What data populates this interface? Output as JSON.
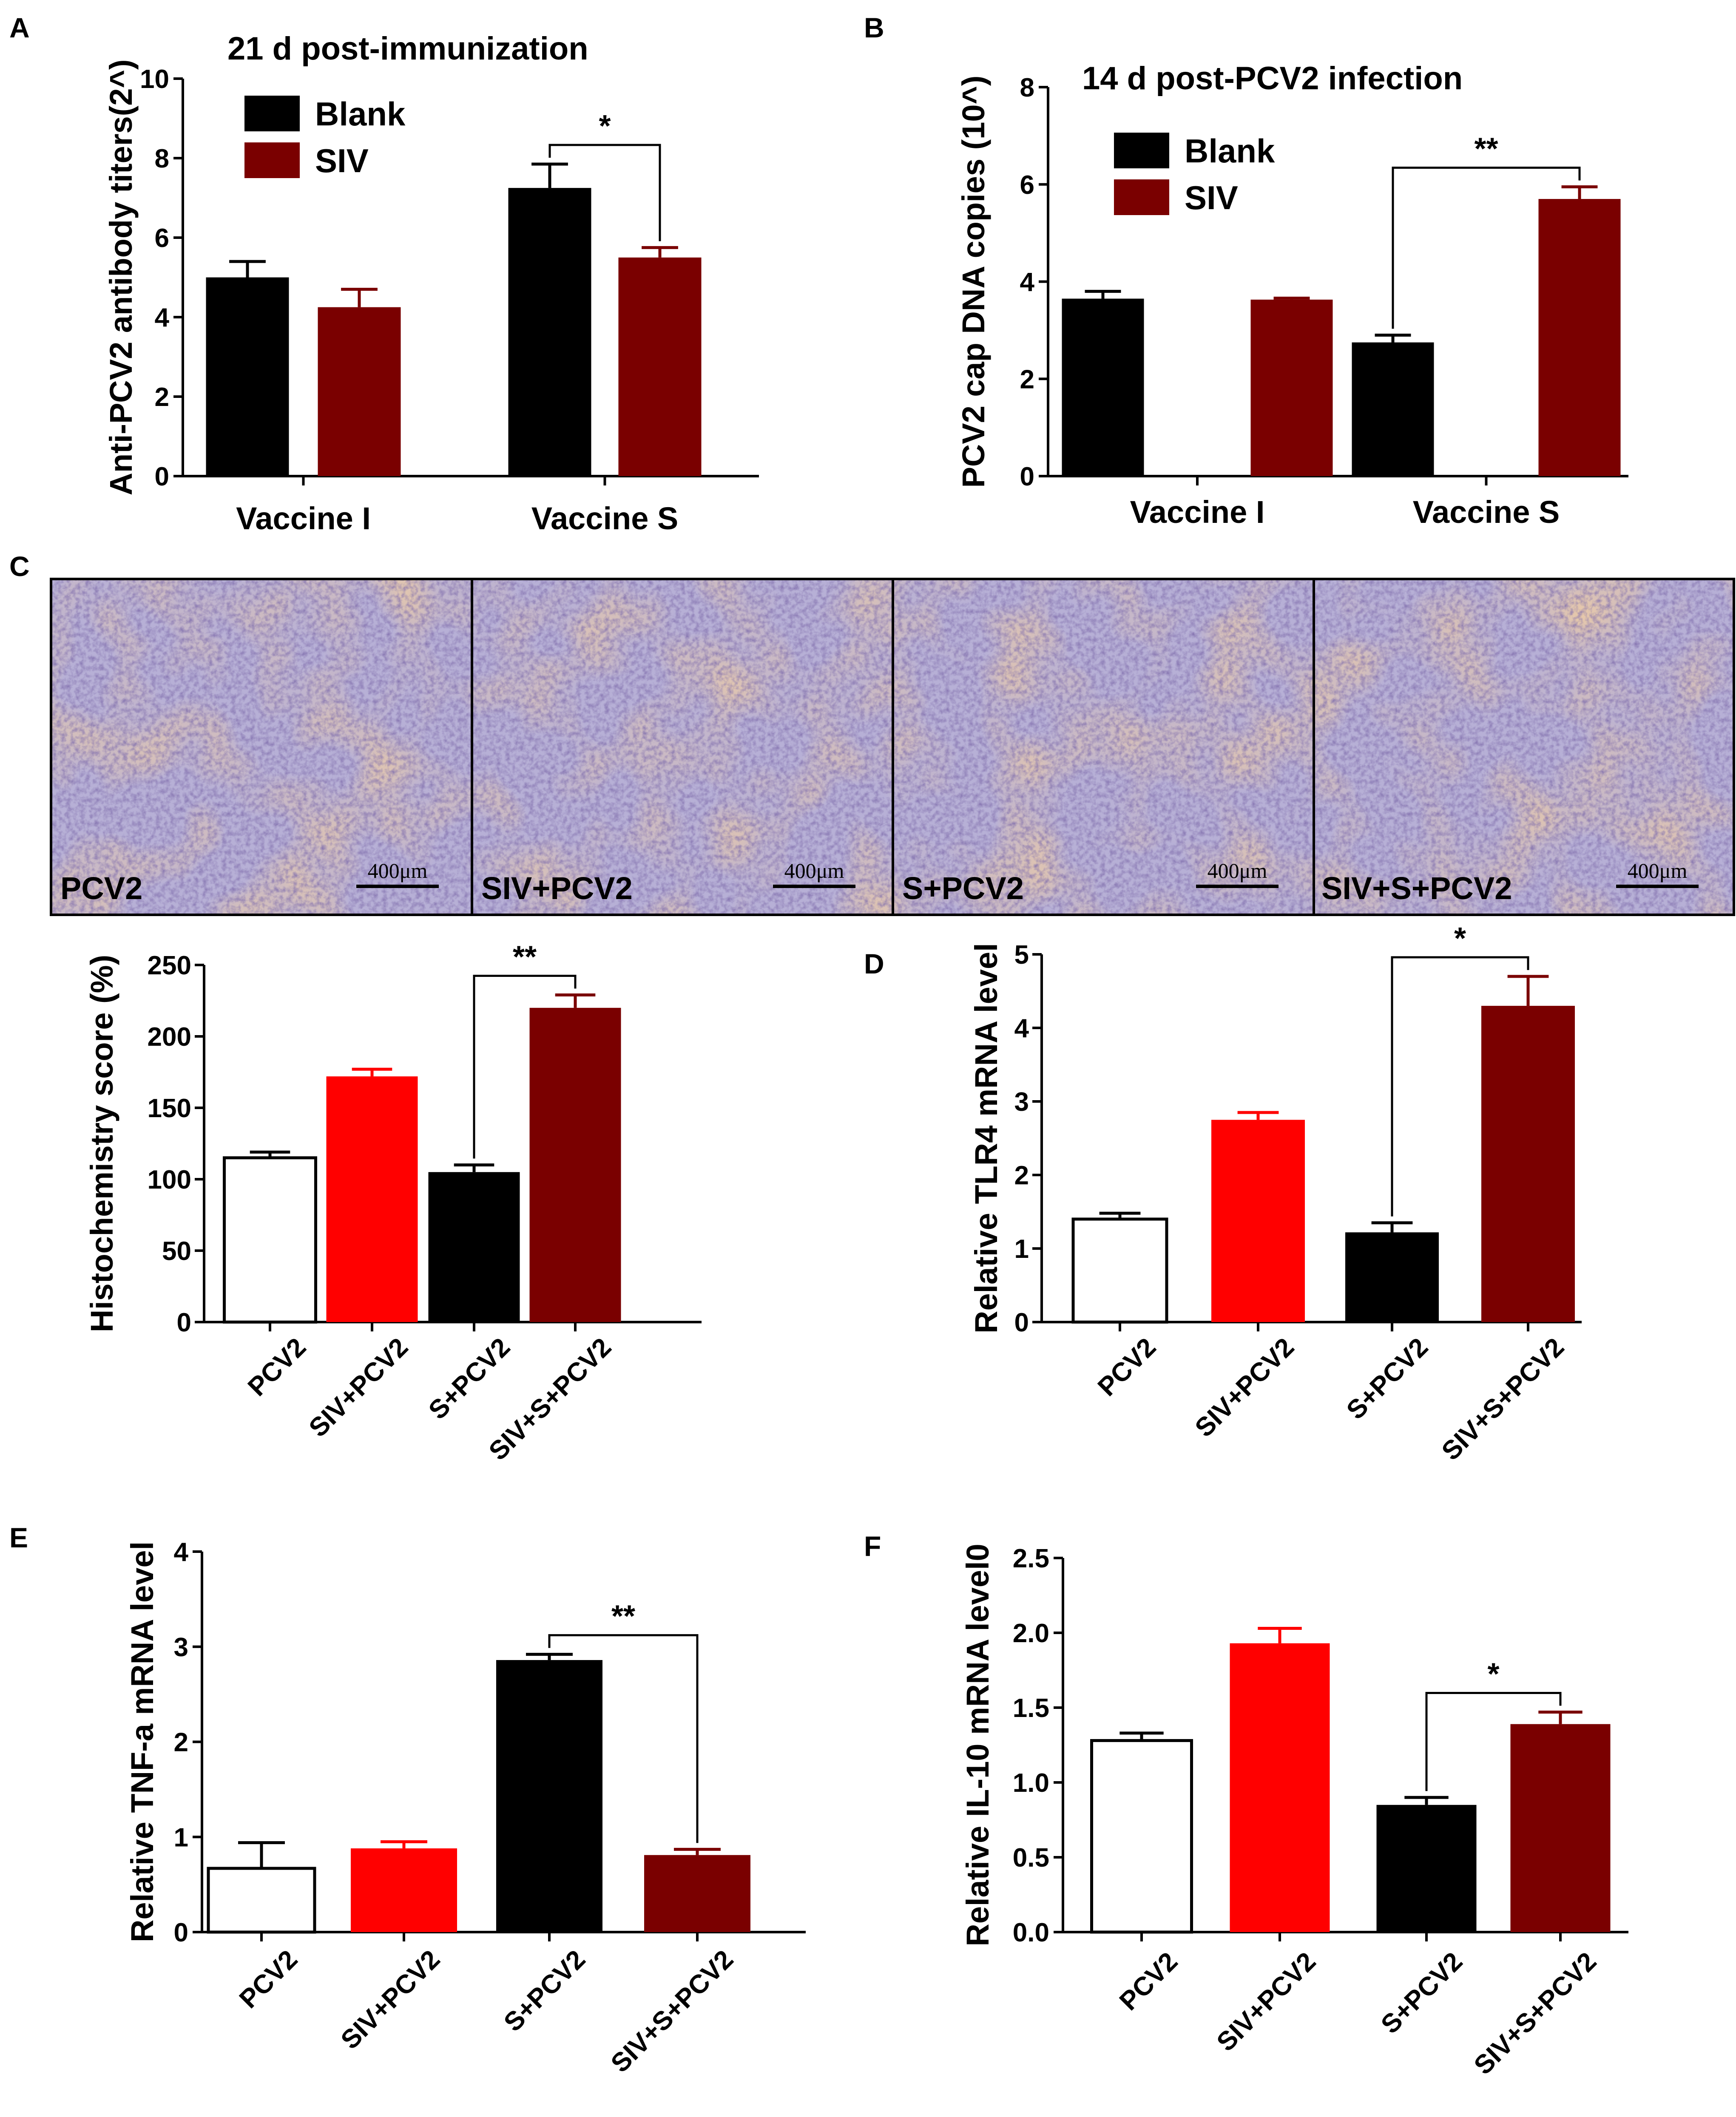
{
  "colors": {
    "blank": "#000000",
    "siv_dark": "#7a0000",
    "siv_red": "#ff0000",
    "open_bar_fill": "#ffffff",
    "tissue_base": "#b7b0d6",
    "tissue_stain": "#c59a6e"
  },
  "panels": {
    "A": {
      "letter": "A"
    },
    "B": {
      "letter": "B"
    },
    "C": {
      "letter": "C",
      "micrographs": [
        {
          "label": "PCV2",
          "scale_bar": "400μm"
        },
        {
          "label": "SIV+PCV2",
          "scale_bar": "400μm"
        },
        {
          "label": "S+PCV2",
          "scale_bar": "400μm"
        },
        {
          "label": "SIV+S+PCV2",
          "scale_bar": "400μm"
        }
      ]
    },
    "D": {
      "letter": "D"
    },
    "E": {
      "letter": "E"
    },
    "F": {
      "letter": "F"
    }
  },
  "chart_data": [
    {
      "panel": "A",
      "type": "bar",
      "title": "21 d post-immunization",
      "ylabel": "Anti-PCV2 antibody titers(2^)",
      "xlabel": "",
      "categories": [
        "Vaccine I",
        "Vaccine S"
      ],
      "series": [
        {
          "name": "Blank",
          "color": "#000000",
          "values": [
            5.0,
            7.25
          ],
          "errors": [
            0.4,
            0.6
          ]
        },
        {
          "name": "SIV",
          "color": "#7a0000",
          "values": [
            4.25,
            5.5
          ],
          "errors": [
            0.45,
            0.25
          ]
        }
      ],
      "ylim": [
        0,
        10
      ],
      "yticks": [
        "0",
        "2",
        "4",
        "6",
        "8",
        "10"
      ],
      "legend_position": "top-left",
      "grid": false,
      "significance": [
        {
          "label": "*",
          "between": [
            "Vaccine S:Blank",
            "Vaccine S:SIV"
          ]
        }
      ]
    },
    {
      "panel": "B",
      "type": "bar",
      "title": "14 d post-PCV2 infection",
      "ylabel": "PCV2 cap DNA copies (10^)",
      "xlabel": "",
      "categories": [
        "Vaccine I",
        "Vaccine S"
      ],
      "series": [
        {
          "name": "Blank",
          "color": "#000000",
          "values": [
            3.65,
            2.75
          ],
          "errors": [
            0.15,
            0.15
          ]
        },
        {
          "name": "SIV",
          "color": "#7a0000",
          "values": [
            3.63,
            5.7
          ],
          "errors": [
            0.03,
            0.25
          ]
        }
      ],
      "ylim": [
        0,
        8
      ],
      "yticks": [
        "0",
        "2",
        "4",
        "6",
        "8"
      ],
      "legend_position": "top-left",
      "grid": false,
      "significance": [
        {
          "label": "**",
          "between": [
            "Vaccine S:Blank",
            "Vaccine S:SIV"
          ]
        }
      ]
    },
    {
      "panel": "C",
      "type": "bar",
      "title": "",
      "ylabel": "Histochemistry score (%)",
      "xlabel": "",
      "categories": [
        "PCV2",
        "SIV+PCV2",
        "S+PCV2",
        "SIV+S+PCV2"
      ],
      "values": [
        115,
        172,
        105,
        220
      ],
      "errors": [
        4,
        5,
        5,
        9
      ],
      "colors": [
        "#ffffff",
        "#ff0000",
        "#000000",
        "#7a0000"
      ],
      "ylim": [
        0,
        250
      ],
      "yticks": [
        "0",
        "50",
        "100",
        "150",
        "200",
        "250"
      ],
      "grid": false,
      "significance": [
        {
          "label": "**",
          "between": [
            "S+PCV2",
            "SIV+S+PCV2"
          ]
        }
      ]
    },
    {
      "panel": "D",
      "type": "bar",
      "title": "",
      "ylabel": "Relative TLR4 mRNA level",
      "xlabel": "",
      "categories": [
        "PCV2",
        "SIV+PCV2",
        "S+PCV2",
        "SIV+S+PCV2"
      ],
      "values": [
        1.4,
        2.75,
        1.22,
        4.3
      ],
      "errors": [
        0.08,
        0.1,
        0.13,
        0.4
      ],
      "colors": [
        "#ffffff",
        "#ff0000",
        "#000000",
        "#7a0000"
      ],
      "ylim": [
        0,
        5
      ],
      "yticks": [
        "0",
        "1",
        "2",
        "3",
        "4",
        "5"
      ],
      "grid": false,
      "significance": [
        {
          "label": "*",
          "between": [
            "S+PCV2",
            "SIV+S+PCV2"
          ]
        }
      ]
    },
    {
      "panel": "E",
      "type": "bar",
      "title": "",
      "ylabel": "Relative TNF-a mRNA level",
      "xlabel": "",
      "categories": [
        "PCV2",
        "SIV+PCV2",
        "S+PCV2",
        "SIV+S+PCV2"
      ],
      "values": [
        0.67,
        0.88,
        2.86,
        0.81
      ],
      "errors": [
        0.27,
        0.07,
        0.06,
        0.06
      ],
      "colors": [
        "#ffffff",
        "#ff0000",
        "#000000",
        "#7a0000"
      ],
      "ylim": [
        0,
        4
      ],
      "yticks": [
        "0",
        "1",
        "2",
        "3",
        "4"
      ],
      "grid": false,
      "significance": [
        {
          "label": "**",
          "between": [
            "S+PCV2",
            "SIV+S+PCV2"
          ]
        }
      ]
    },
    {
      "panel": "F",
      "type": "bar",
      "title": "",
      "ylabel": "Relative IL-10 mRNA level0",
      "xlabel": "",
      "categories": [
        "PCV2",
        "SIV+PCV2",
        "S+PCV2",
        "SIV+S+PCV2"
      ],
      "values": [
        1.28,
        1.93,
        0.85,
        1.39
      ],
      "errors": [
        0.05,
        0.1,
        0.05,
        0.08
      ],
      "colors": [
        "#ffffff",
        "#ff0000",
        "#000000",
        "#7a0000"
      ],
      "ylim": [
        0,
        2.5
      ],
      "yticks": [
        "0.0",
        "0.5",
        "1.0",
        "1.5",
        "2.0",
        "2.5"
      ],
      "grid": false,
      "significance": [
        {
          "label": "*",
          "between": [
            "S+PCV2",
            "SIV+S+PCV2"
          ]
        }
      ]
    }
  ]
}
